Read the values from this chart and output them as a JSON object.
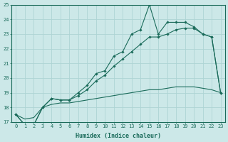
{
  "xlabel": "Humidex (Indice chaleur)",
  "x": [
    0,
    1,
    2,
    3,
    4,
    5,
    6,
    7,
    8,
    9,
    10,
    11,
    12,
    13,
    14,
    15,
    16,
    17,
    18,
    19,
    20,
    21,
    22,
    23
  ],
  "line1": [
    17.5,
    16.8,
    16.8,
    18.0,
    18.6,
    18.5,
    18.5,
    19.0,
    19.5,
    20.3,
    20.5,
    21.5,
    21.8,
    23.0,
    23.3,
    25.0,
    23.0,
    23.8,
    23.8,
    23.8,
    23.5,
    23.0,
    22.8,
    19.0
  ],
  "line2": [
    17.5,
    16.8,
    16.8,
    18.0,
    18.6,
    18.5,
    18.5,
    18.8,
    19.2,
    19.8,
    20.2,
    20.8,
    21.3,
    21.8,
    22.3,
    22.8,
    22.8,
    23.0,
    23.3,
    23.4,
    23.4,
    23.0,
    22.8,
    19.0
  ],
  "line3": [
    17.5,
    17.2,
    17.3,
    18.0,
    18.2,
    18.3,
    18.3,
    18.4,
    18.5,
    18.6,
    18.7,
    18.8,
    18.9,
    19.0,
    19.1,
    19.2,
    19.2,
    19.3,
    19.4,
    19.4,
    19.4,
    19.3,
    19.2,
    19.0
  ],
  "line_color": "#1a6b5a",
  "bg_color": "#cce8e8",
  "grid_color": "#aed4d4",
  "ylim": [
    17,
    25
  ],
  "yticks": [
    17,
    18,
    19,
    20,
    21,
    22,
    23,
    24,
    25
  ],
  "tick_fontsize": 5,
  "xlabel_fontsize": 6
}
